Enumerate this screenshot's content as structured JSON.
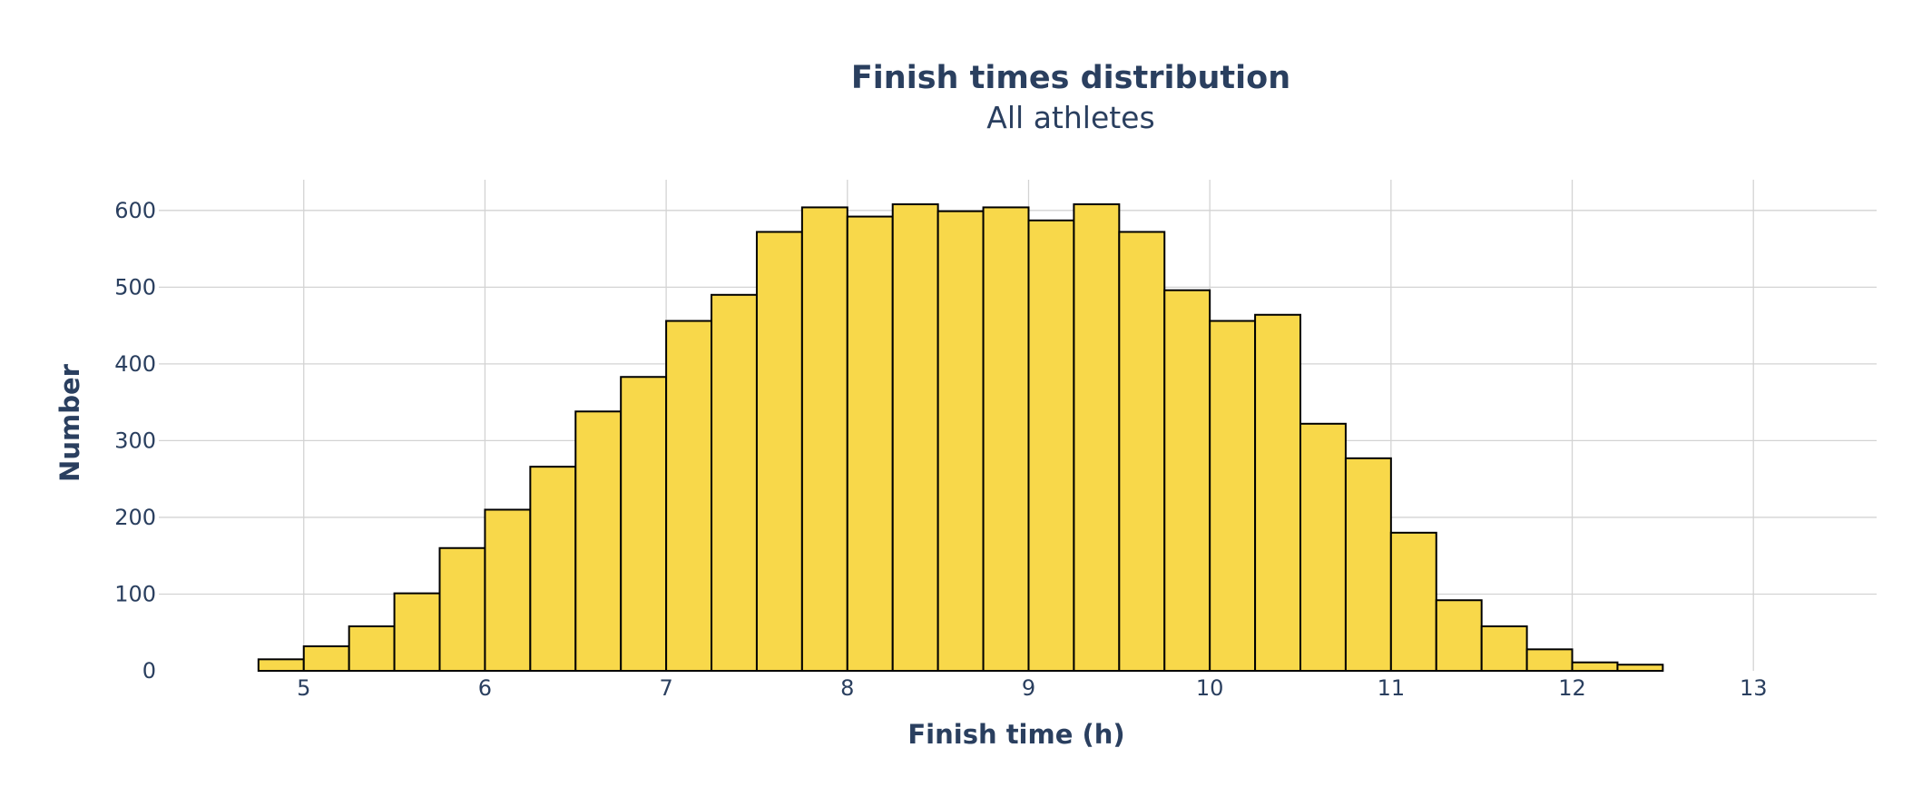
{
  "chart_data": {
    "type": "bar",
    "title": "Finish times distribution",
    "subtitle": "All athletes",
    "xlabel": "Finish time (h)",
    "ylabel": "Number",
    "xlim": [
      4.2,
      13.68
    ],
    "ylim": [
      0,
      640
    ],
    "x_ticks": [
      5,
      6,
      7,
      8,
      9,
      10,
      11,
      12,
      13
    ],
    "y_ticks": [
      0,
      100,
      200,
      300,
      400,
      500,
      600
    ],
    "grid": true,
    "bar_color": "#f8d84a",
    "bar_edge_color": "#000000",
    "bin_width": 0.25,
    "series": [
      {
        "bin_starts": [
          4.75,
          5.0,
          5.25,
          5.5,
          5.75,
          6.0,
          6.25,
          6.5,
          6.75,
          7.0,
          7.25,
          7.5,
          7.75,
          8.0,
          8.25,
          8.5,
          8.75,
          9.0,
          9.25,
          9.5,
          9.75,
          10.0,
          10.25,
          10.5,
          10.75,
          11.0,
          11.25,
          11.5,
          11.75,
          12.0,
          12.25
        ],
        "values": [
          15,
          32,
          58,
          101,
          160,
          210,
          266,
          338,
          383,
          456,
          490,
          572,
          604,
          592,
          608,
          599,
          604,
          587,
          608,
          572,
          496,
          456,
          464,
          322,
          277,
          180,
          92,
          58,
          28,
          11,
          8
        ]
      }
    ]
  }
}
